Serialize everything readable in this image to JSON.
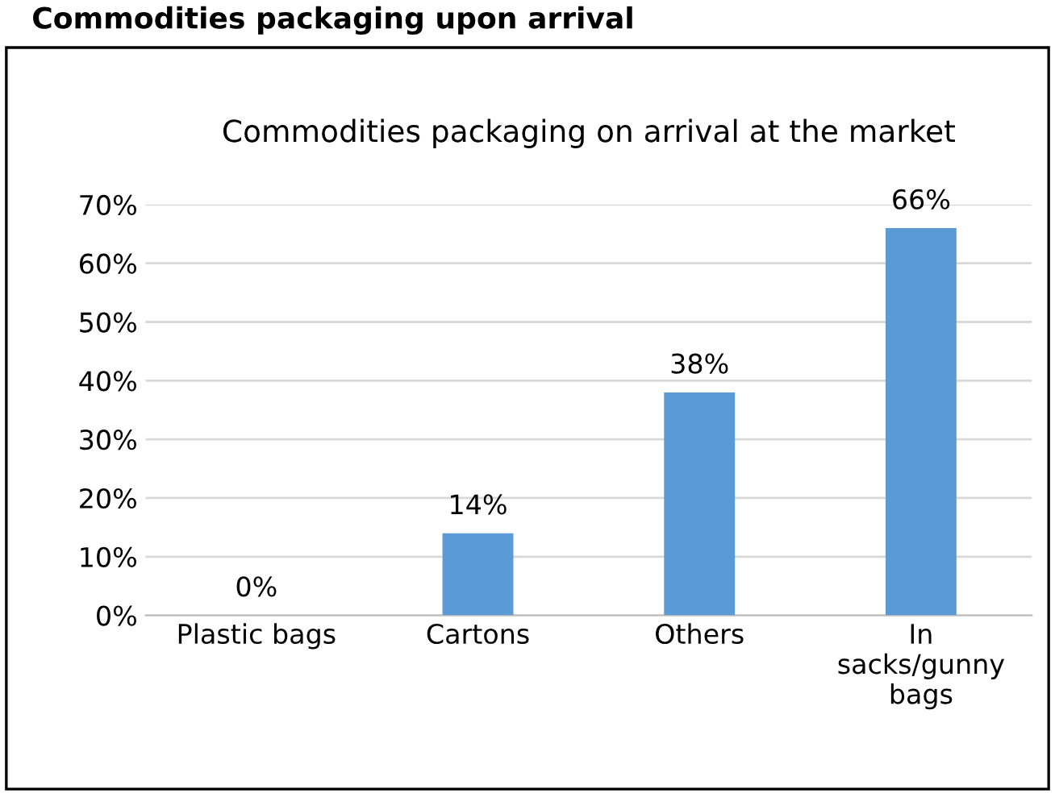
{
  "chart_data": {
    "type": "bar",
    "title": "Commodities packaging upon arrival",
    "subtitle": "Commodities packaging on arrival at the market",
    "categories": [
      "Plastic bags",
      "Cartons",
      "Others",
      "In sacks/gunny bags"
    ],
    "values": [
      0,
      14,
      38,
      66
    ],
    "color": "#5b9bd5",
    "value_labels": [
      "0%",
      "14%",
      "38%",
      "66%"
    ],
    "ylim": [
      0,
      70
    ],
    "yticks": [
      {
        "value": 0,
        "label": "0%"
      },
      {
        "value": 10,
        "label": "10%"
      },
      {
        "value": 20,
        "label": "20%"
      },
      {
        "value": 30,
        "label": "30%"
      },
      {
        "value": 40,
        "label": "40%"
      },
      {
        "value": 50,
        "label": "50%"
      },
      {
        "value": 60,
        "label": "60%"
      },
      {
        "value": 70,
        "label": "70%"
      }
    ],
    "grid": "y",
    "legend": false
  }
}
